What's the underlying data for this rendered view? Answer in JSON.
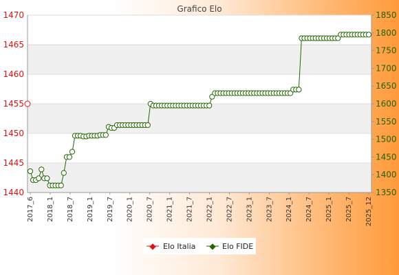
{
  "chart_data": {
    "type": "line",
    "title": "Grafico Elo",
    "y_left": {
      "ticks": [
        1440,
        1445,
        1450,
        1455,
        1460,
        1465,
        1470
      ],
      "range": [
        1440,
        1470
      ],
      "color": "#e01010"
    },
    "y_right": {
      "ticks": [
        1350,
        1400,
        1450,
        1500,
        1550,
        1600,
        1650,
        1700,
        1750,
        1800,
        1850
      ],
      "range": [
        1350,
        1850
      ],
      "color": "#226600"
    },
    "x_tick_labels": [
      "2017_6",
      "2018_1",
      "2018_7",
      "2019_1",
      "2019_7",
      "2020_1",
      "2020_7",
      "2021_1",
      "2021_7",
      "2022_1",
      "2022_7",
      "2023_1",
      "2023_7",
      "2024_1",
      "2024_7",
      "2025_1",
      "2025_7",
      "2025_12"
    ],
    "legend_position": "bottom",
    "series": [
      {
        "name": "Elo Italia",
        "axis": "left",
        "color": "#e01010",
        "values": [
          1455
        ]
      },
      {
        "name": "Elo FIDE",
        "axis": "right",
        "color": "#226600",
        "values": [
          1410,
          1385,
          1385,
          1390,
          1415,
          1390,
          1390,
          1370,
          1370,
          1370,
          1370,
          1370,
          1405,
          1450,
          1450,
          1465,
          1510,
          1510,
          1510,
          1508,
          1508,
          1510,
          1510,
          1510,
          1510,
          1512,
          1512,
          1512,
          1535,
          1532,
          1532,
          1540,
          1540,
          1540,
          1540,
          1540,
          1540,
          1540,
          1540,
          1540,
          1540,
          1540,
          1540,
          1600,
          1595,
          1595,
          1595,
          1595,
          1595,
          1595,
          1595,
          1595,
          1595,
          1595,
          1595,
          1595,
          1595,
          1595,
          1595,
          1595,
          1595,
          1595,
          1595,
          1595,
          1595,
          1620,
          1630,
          1630,
          1630,
          1630,
          1630,
          1630,
          1630,
          1630,
          1630,
          1630,
          1630,
          1630,
          1630,
          1630,
          1630,
          1630,
          1630,
          1630,
          1630,
          1630,
          1630,
          1630,
          1630,
          1630,
          1630,
          1630,
          1630,
          1630,
          1640,
          1640,
          1640,
          1785,
          1785,
          1785,
          1785,
          1785,
          1785,
          1785,
          1785,
          1785,
          1785,
          1785,
          1785,
          1785,
          1785,
          1795,
          1795,
          1795,
          1795,
          1795,
          1795,
          1795,
          1795,
          1795,
          1795,
          1795
        ]
      }
    ]
  }
}
